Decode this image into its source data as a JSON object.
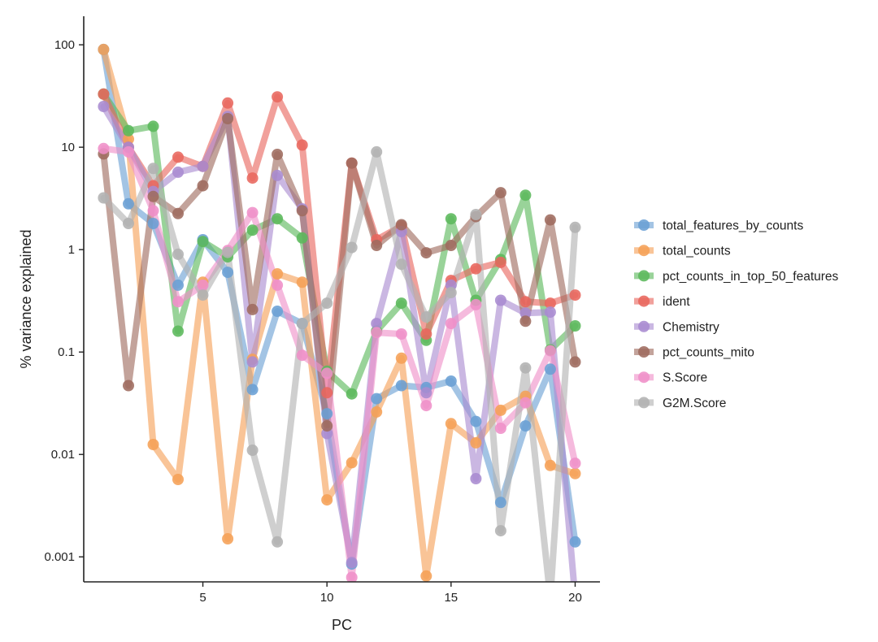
{
  "chart_data": {
    "type": "line",
    "xlabel": "PC",
    "ylabel": "% variance explained",
    "xlim": [
      0.2,
      21
    ],
    "ylim": [
      0.00057,
      190
    ],
    "y_scale": "log",
    "x_ticks": [
      5,
      10,
      15,
      20
    ],
    "y_ticks": [
      {
        "value": 100,
        "label": "100"
      },
      {
        "value": 10,
        "label": "10"
      },
      {
        "value": 1,
        "label": "1"
      },
      {
        "value": 0.1,
        "label": "0.1"
      },
      {
        "value": 0.01,
        "label": "0.01"
      },
      {
        "value": 0.001,
        "label": "0.001"
      }
    ],
    "grid": false,
    "legend_position": "right",
    "x": [
      1,
      2,
      3,
      4,
      5,
      6,
      7,
      8,
      9,
      10,
      11,
      12,
      13,
      14,
      15,
      16,
      17,
      18,
      19,
      20
    ],
    "series": [
      {
        "name": "total_features_by_counts",
        "color": "#6a9fd4",
        "values": [
          90,
          2.8,
          1.8,
          0.45,
          1.25,
          0.6,
          0.043,
          0.25,
          0.19,
          0.025,
          0.00085,
          0.035,
          0.047,
          0.045,
          0.052,
          0.021,
          0.0034,
          0.019,
          0.068,
          0.0014
        ]
      },
      {
        "name": "total_counts",
        "color": "#f5a057",
        "values": [
          90,
          12,
          0.0125,
          0.0057,
          0.48,
          0.0015,
          0.085,
          0.58,
          0.48,
          0.0036,
          0.0083,
          0.026,
          0.087,
          0.00065,
          0.02,
          0.013,
          0.027,
          0.037,
          0.0078,
          0.0065
        ]
      },
      {
        "name": "pct_counts_in_top_50_features",
        "color": "#5bb85b",
        "values": [
          33,
          14.5,
          16,
          0.16,
          1.2,
          0.85,
          1.55,
          2.0,
          1.3,
          0.065,
          0.039,
          0.16,
          0.3,
          0.13,
          2.0,
          0.32,
          0.8,
          3.4,
          0.105,
          0.18
        ]
      },
      {
        "name": "ident",
        "color": "#e8665d",
        "values": [
          33,
          10,
          4.2,
          8.0,
          6.5,
          27,
          5.0,
          31,
          10.5,
          0.04,
          7.0,
          1.25,
          1.7,
          0.15,
          0.5,
          0.65,
          0.75,
          0.31,
          0.3,
          0.36
        ]
      },
      {
        "name": "Chemistry",
        "color": "#a98bd0",
        "values": [
          25,
          10,
          3.7,
          5.7,
          6.5,
          20,
          0.08,
          5.3,
          2.5,
          0.016,
          0.00088,
          0.19,
          1.5,
          0.04,
          0.45,
          0.0058,
          0.32,
          0.24,
          0.245,
          0.0004
        ]
      },
      {
        "name": "pct_counts_mito",
        "color": "#9e6b5e",
        "values": [
          8.6,
          0.047,
          3.3,
          2.25,
          4.2,
          19,
          0.26,
          8.5,
          2.4,
          0.019,
          7.0,
          1.1,
          1.75,
          0.93,
          1.1,
          2.1,
          3.6,
          0.2,
          1.95,
          0.08
        ]
      },
      {
        "name": "S.Score",
        "color": "#ef90c8",
        "values": [
          9.7,
          9.0,
          2.4,
          0.31,
          0.45,
          0.98,
          2.3,
          0.45,
          0.093,
          0.062,
          0.00063,
          0.155,
          0.15,
          0.03,
          0.19,
          0.29,
          0.018,
          0.032,
          0.103,
          0.0082
        ]
      },
      {
        "name": "G2M.Score",
        "color": "#b2b2b2",
        "values": [
          3.2,
          1.8,
          6.2,
          0.9,
          0.36,
          0.94,
          0.011,
          0.0014,
          0.19,
          0.3,
          1.05,
          9.0,
          0.72,
          0.22,
          0.38,
          2.2,
          0.0018,
          0.07,
          0.0004,
          1.65
        ]
      }
    ]
  }
}
